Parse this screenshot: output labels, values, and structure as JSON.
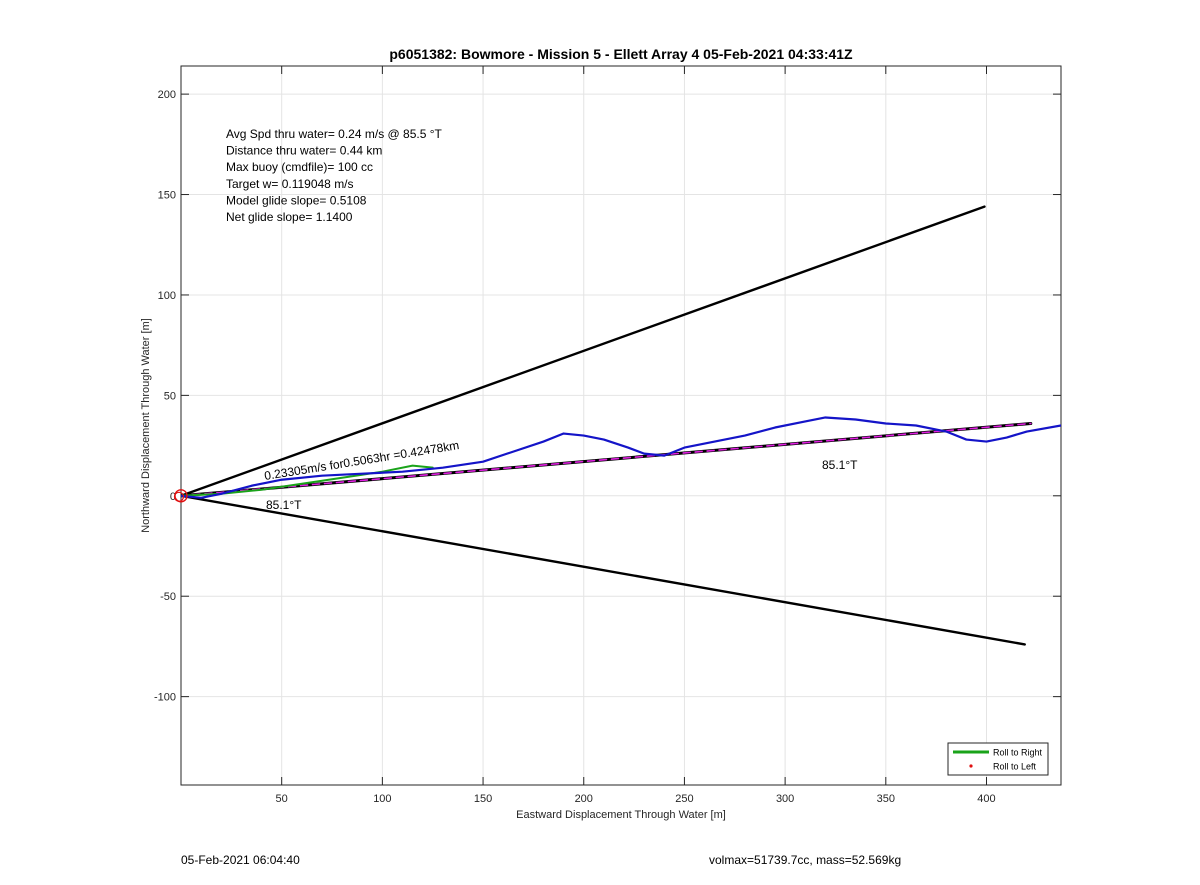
{
  "chart_data": {
    "type": "line",
    "title": "p6051382: Bowmore - Mission 5 - Ellett Array 4 05-Feb-2021 04:33:41Z",
    "xlabel": "Eastward Displacement Through Water [m]",
    "ylabel": "Northward Displacement Through Water [m]",
    "xlim": [
      0,
      437
    ],
    "ylim": [
      -144,
      214
    ],
    "xticks": [
      50,
      100,
      150,
      200,
      250,
      300,
      350,
      400
    ],
    "yticks": [
      200,
      150,
      100,
      50,
      0,
      -50,
      -100
    ],
    "grid": true,
    "info_lines": [
      "Avg Spd thru water=  0.24 m/s @  85.5 °T",
      "Distance thru water=  0.44 km",
      "Max buoy (cmdfile)= 100 cc",
      "Target w= 0.119048 m/s",
      "Model glide slope= 0.5108",
      "Net glide slope= 1.1400"
    ],
    "annotations": {
      "speed_label": "0.23305m/s for0.5063hr =0.42478km",
      "heading_near": "85.1°T",
      "heading_far": "85.1°T"
    },
    "series": [
      {
        "name": "",
        "color": "#000000",
        "role": "cone-upper",
        "points": [
          [
            0,
            0
          ],
          [
            399,
            144
          ]
        ]
      },
      {
        "name": "",
        "color": "#000000",
        "role": "cone-lower",
        "points": [
          [
            0,
            0
          ],
          [
            419,
            -74
          ]
        ]
      },
      {
        "name": "",
        "color": "#000000",
        "role": "heading-line",
        "points": [
          [
            0,
            0
          ],
          [
            422,
            36
          ]
        ]
      },
      {
        "name": "Roll to Right",
        "color": "#1aa31a",
        "role": "roll-right",
        "points": [
          [
            0,
            0
          ],
          [
            20,
            1
          ],
          [
            40,
            3
          ],
          [
            60,
            6
          ],
          [
            80,
            9
          ],
          [
            100,
            12
          ],
          [
            115,
            15
          ],
          [
            125,
            14
          ]
        ]
      },
      {
        "name": "",
        "color": "#1414c8",
        "role": "track",
        "points": [
          [
            0,
            0
          ],
          [
            10,
            -1
          ],
          [
            20,
            1
          ],
          [
            35,
            5
          ],
          [
            50,
            8
          ],
          [
            70,
            10
          ],
          [
            90,
            11
          ],
          [
            110,
            12
          ],
          [
            130,
            14
          ],
          [
            150,
            17
          ],
          [
            165,
            22
          ],
          [
            180,
            27
          ],
          [
            190,
            31
          ],
          [
            200,
            30
          ],
          [
            210,
            28
          ],
          [
            222,
            24
          ],
          [
            230,
            21
          ],
          [
            240,
            20
          ],
          [
            250,
            24
          ],
          [
            265,
            27
          ],
          [
            280,
            30
          ],
          [
            295,
            34
          ],
          [
            310,
            37
          ],
          [
            320,
            39
          ],
          [
            335,
            38
          ],
          [
            350,
            36
          ],
          [
            365,
            35
          ],
          [
            380,
            32
          ],
          [
            390,
            28
          ],
          [
            400,
            27
          ],
          [
            410,
            29
          ],
          [
            420,
            32
          ],
          [
            437,
            35
          ]
        ]
      }
    ],
    "legend": {
      "placement": "bottom-right",
      "entries": [
        {
          "label": "Roll to Right",
          "color": "#1aa31a",
          "kind": "line"
        },
        {
          "label": "Roll to Left",
          "color": "#e01010",
          "kind": "dot"
        }
      ]
    }
  },
  "footer": {
    "left": "05-Feb-2021 06:04:40",
    "right": "volmax=51739.7cc, mass=52.569kg"
  }
}
